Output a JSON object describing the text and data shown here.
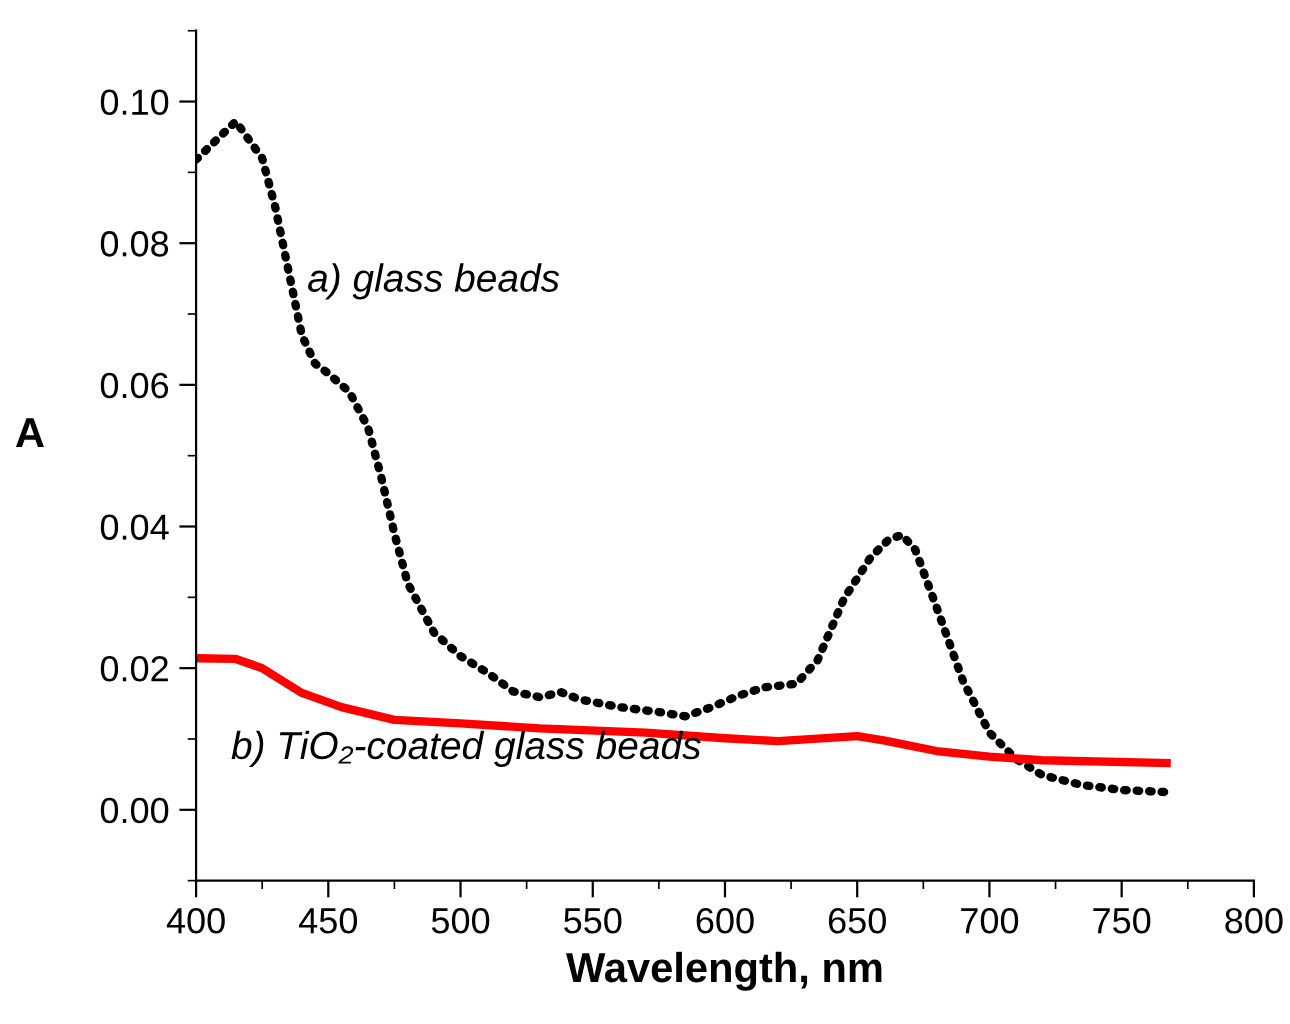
{
  "chart_data": {
    "type": "line",
    "xlabel": "Wavelength, nm",
    "ylabel": "A",
    "xlim": [
      400,
      800
    ],
    "xticks": [
      400,
      450,
      500,
      550,
      600,
      650,
      700,
      750,
      800
    ],
    "ylim": [
      -0.01,
      0.11
    ],
    "yticks": [
      {
        "value": 0,
        "label": "0.00"
      },
      {
        "value": 0.02,
        "label": "0.02"
      },
      {
        "value": 0.04,
        "label": "0.04"
      },
      {
        "value": 0.06,
        "label": "0.06"
      },
      {
        "value": 0.08,
        "label": "0.08"
      },
      {
        "value": 0.1,
        "label": "0.10"
      }
    ],
    "grid": false,
    "legend": false,
    "series": [
      {
        "color": "#000000",
        "line_style": "dotted",
        "x": [
          400,
          415,
          425,
          430,
          435,
          440,
          445,
          450,
          458,
          465,
          470,
          475,
          480,
          490,
          500,
          510,
          520,
          530,
          538,
          545,
          560,
          575,
          585,
          595,
          605,
          615,
          627,
          635,
          645,
          655,
          662,
          667,
          672,
          680,
          690,
          700,
          710,
          720,
          735,
          750,
          767
        ],
        "values": [
          0.0918,
          0.0972,
          0.092,
          0.085,
          0.076,
          0.067,
          0.063,
          0.0616,
          0.059,
          0.054,
          0.047,
          0.039,
          0.032,
          0.025,
          0.0217,
          0.0194,
          0.0167,
          0.0159,
          0.0166,
          0.0156,
          0.0145,
          0.0138,
          0.0132,
          0.0145,
          0.0161,
          0.0173,
          0.0178,
          0.0211,
          0.0298,
          0.0356,
          0.0382,
          0.0388,
          0.0367,
          0.0286,
          0.0182,
          0.0109,
          0.0072,
          0.0049,
          0.0035,
          0.0028,
          0.0025
        ]
      },
      {
        "color": "#ff0000",
        "line_style": "solid",
        "x": [
          400,
          415,
          425,
          440,
          455,
          475,
          500,
          530,
          570,
          600,
          620,
          650,
          660,
          680,
          700,
          720,
          767
        ],
        "values": [
          0.0214,
          0.0213,
          0.02,
          0.0165,
          0.0145,
          0.0127,
          0.0122,
          0.0115,
          0.0109,
          0.0101,
          0.0097,
          0.0104,
          0.0098,
          0.0083,
          0.0075,
          0.007,
          0.0066
        ]
      }
    ],
    "annotations": [
      "a) glass beads",
      "b) TiO₂-coated glass beads"
    ]
  }
}
